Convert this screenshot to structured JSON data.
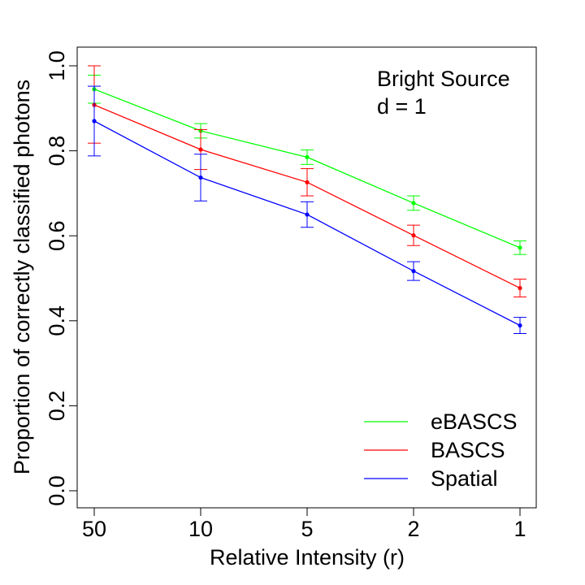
{
  "chart_data": {
    "type": "line",
    "xlabel": "Relative Intensity (r)",
    "ylabel": "Proportion of correctly classified photons",
    "categories": [
      "50",
      "10",
      "5",
      "2",
      "1"
    ],
    "ylim": [
      0.0,
      1.0
    ],
    "yticks": [
      0.0,
      0.2,
      0.4,
      0.6,
      0.8,
      1.0
    ],
    "ytick_labels": [
      "0.0",
      "0.2",
      "0.4",
      "0.6",
      "0.8",
      "1.0"
    ],
    "annotations": [
      "Bright Source",
      "d = 1"
    ],
    "legend_position": "bottom-right",
    "series": [
      {
        "name": "eBASCS",
        "color": "#00ff00",
        "values": [
          0.945,
          0.847,
          0.785,
          0.677,
          0.572
        ],
        "err_low": [
          0.912,
          0.83,
          0.768,
          0.66,
          0.556
        ],
        "err_high": [
          0.978,
          0.864,
          0.802,
          0.694,
          0.588
        ]
      },
      {
        "name": "BASCS",
        "color": "#ff0000",
        "values": [
          0.908,
          0.803,
          0.726,
          0.601,
          0.477
        ],
        "err_low": [
          0.818,
          0.756,
          0.694,
          0.577,
          0.456
        ],
        "err_high": [
          1.0,
          0.85,
          0.758,
          0.625,
          0.498
        ]
      },
      {
        "name": "Spatial",
        "color": "#0000ff",
        "values": [
          0.87,
          0.737,
          0.65,
          0.517,
          0.389
        ],
        "err_low": [
          0.788,
          0.682,
          0.62,
          0.495,
          0.37
        ],
        "err_high": [
          0.952,
          0.792,
          0.68,
          0.539,
          0.408
        ]
      }
    ]
  }
}
